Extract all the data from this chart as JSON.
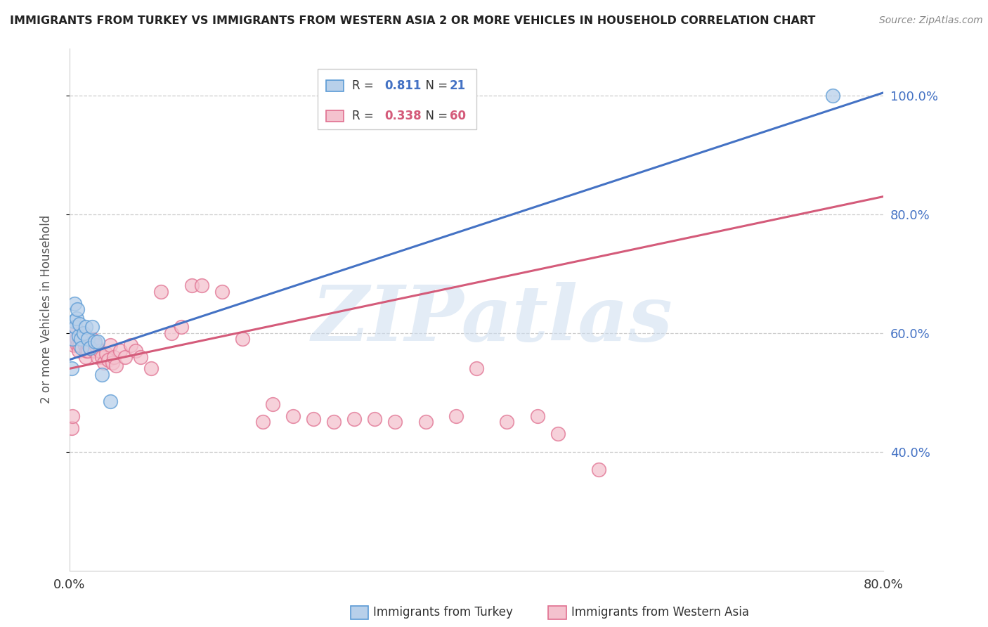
{
  "title": "IMMIGRANTS FROM TURKEY VS IMMIGRANTS FROM WESTERN ASIA 2 OR MORE VEHICLES IN HOUSEHOLD CORRELATION CHART",
  "source": "Source: ZipAtlas.com",
  "ylabel": "2 or more Vehicles in Household",
  "legend_label1": "Immigrants from Turkey",
  "legend_label2": "Immigrants from Western Asia",
  "R1": 0.811,
  "N1": 21,
  "R2": 0.338,
  "N2": 60,
  "color1_fill": "#b8d0ea",
  "color1_edge": "#5b9bd5",
  "color2_fill": "#f4c2ce",
  "color2_edge": "#e07090",
  "color1_line": "#4472c4",
  "color2_line": "#d45b7a",
  "xlim": [
    0.0,
    0.8
  ],
  "ylim": [
    0.2,
    1.08
  ],
  "yticks_right": [
    0.4,
    0.6,
    0.8,
    1.0
  ],
  "ytick_labels_right": [
    "40.0%",
    "60.0%",
    "80.0%",
    "100.0%"
  ],
  "watermark_text": "ZIPatlas",
  "background_color": "#ffffff",
  "turkey_x": [
    0.002,
    0.003,
    0.004,
    0.005,
    0.006,
    0.007,
    0.008,
    0.009,
    0.01,
    0.011,
    0.012,
    0.014,
    0.016,
    0.018,
    0.02,
    0.022,
    0.025,
    0.028,
    0.032,
    0.04,
    0.75
  ],
  "turkey_y": [
    0.54,
    0.59,
    0.62,
    0.65,
    0.61,
    0.625,
    0.64,
    0.595,
    0.615,
    0.59,
    0.575,
    0.6,
    0.61,
    0.59,
    0.575,
    0.61,
    0.585,
    0.585,
    0.53,
    0.485,
    1.0
  ],
  "western_asia_x": [
    0.002,
    0.003,
    0.004,
    0.005,
    0.006,
    0.007,
    0.008,
    0.009,
    0.01,
    0.011,
    0.012,
    0.013,
    0.014,
    0.015,
    0.016,
    0.017,
    0.018,
    0.019,
    0.02,
    0.022,
    0.024,
    0.026,
    0.028,
    0.03,
    0.032,
    0.034,
    0.036,
    0.038,
    0.04,
    0.042,
    0.044,
    0.046,
    0.05,
    0.055,
    0.06,
    0.065,
    0.07,
    0.08,
    0.09,
    0.1,
    0.11,
    0.12,
    0.13,
    0.15,
    0.17,
    0.19,
    0.2,
    0.22,
    0.24,
    0.26,
    0.28,
    0.3,
    0.32,
    0.35,
    0.38,
    0.4,
    0.43,
    0.46,
    0.48,
    0.52
  ],
  "western_asia_y": [
    0.44,
    0.46,
    0.58,
    0.6,
    0.61,
    0.59,
    0.58,
    0.57,
    0.58,
    0.6,
    0.6,
    0.59,
    0.59,
    0.58,
    0.56,
    0.57,
    0.57,
    0.58,
    0.575,
    0.59,
    0.57,
    0.58,
    0.56,
    0.57,
    0.56,
    0.55,
    0.565,
    0.555,
    0.58,
    0.55,
    0.56,
    0.545,
    0.57,
    0.56,
    0.58,
    0.57,
    0.56,
    0.54,
    0.67,
    0.6,
    0.61,
    0.68,
    0.68,
    0.67,
    0.59,
    0.45,
    0.48,
    0.46,
    0.455,
    0.45,
    0.455,
    0.455,
    0.45,
    0.45,
    0.46,
    0.54,
    0.45,
    0.46,
    0.43,
    0.37
  ],
  "line1_x0": 0.0,
  "line1_y0": 0.555,
  "line1_x1": 0.8,
  "line1_y1": 1.005,
  "line2_x0": 0.0,
  "line2_y0": 0.54,
  "line2_x1": 0.8,
  "line2_y1": 0.83
}
